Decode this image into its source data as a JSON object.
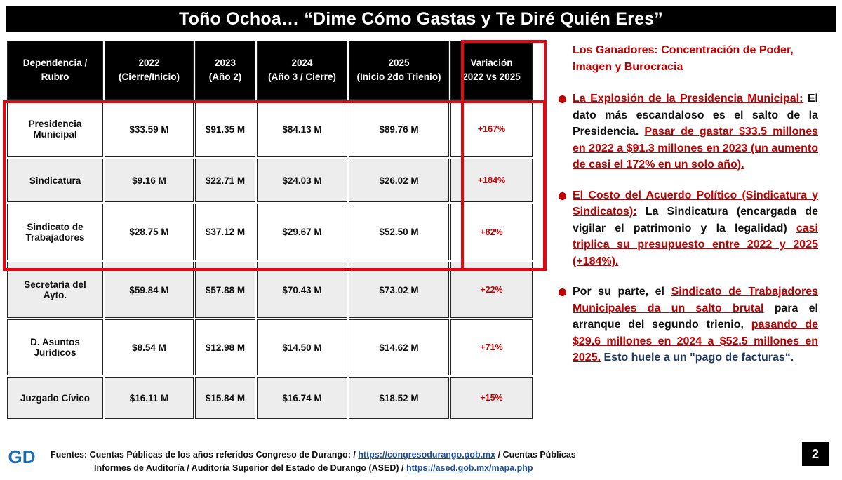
{
  "title": "Toño Ochoa… “Dime Cómo Gastas y Te Diré Quién Eres”",
  "table": {
    "headers": [
      [
        "Dependencia /",
        "Rubro"
      ],
      [
        "2022",
        "(Cierre/Inicio)"
      ],
      [
        "2023",
        "(Año 2)"
      ],
      [
        "2024",
        "(Año 3 / Cierre)"
      ],
      [
        "2025",
        "(Inicio 2do Trienio)"
      ],
      [
        "Variación",
        "2022 vs 2025"
      ]
    ],
    "rows": [
      {
        "name": [
          "Presidencia",
          "Municipal"
        ],
        "y2022": "$33.59 M",
        "y2023": "$91.35 M",
        "y2024": "$84.13 M",
        "y2025": "$89.76 M",
        "variation": "+167%"
      },
      {
        "name": [
          "Sindicatura"
        ],
        "y2022": "$9.16 M",
        "y2023": "$22.71 M",
        "y2024": "$24.03 M",
        "y2025": "$26.02 M",
        "variation": "+184%"
      },
      {
        "name": [
          "Sindicato de",
          "Trabajadores"
        ],
        "y2022": "$28.75 M",
        "y2023": "$37.12 M",
        "y2024": "$29.67 M",
        "y2025": "$52.50 M",
        "variation": "+82%"
      },
      {
        "name": [
          "Secretaría del",
          "Ayto."
        ],
        "y2022": "$59.84 M",
        "y2023": "$57.88 M",
        "y2024": "$70.43 M",
        "y2025": "$73.02 M",
        "variation": "+22%"
      },
      {
        "name": [
          "D. Asuntos",
          "Jurídicos"
        ],
        "y2022": "$8.54 M",
        "y2023": "$12.98 M",
        "y2024": "$14.50 M",
        "y2025": "$14.62 M",
        "variation": "+71%"
      },
      {
        "name": [
          "Juzgado Cívico"
        ],
        "y2022": "$16.11 M",
        "y2023": "$15.84 M",
        "y2024": "$16.74 M",
        "y2025": "$18.52 M",
        "variation": "+15%"
      }
    ]
  },
  "side": {
    "intro": "Los Ganadores: Concentración de Poder, Imagen y Burocracia",
    "b1_lead": "La Explosión de la Presidencia Municipal:",
    "b1_text": " El dato más escandaloso es el salto de la Presidencia. ",
    "b1_highlight": "Pasar de gastar $33.5 millones en 2022 a $91.3 millones en 2023 (un aumento de casi el 172% en un solo año).",
    "b2_lead": "El Costo del Acuerdo Político (Sindicatura y Sindicatos):",
    "b2_text": " La Sindicatura (encargada de vigilar el patrimonio y la legalidad) ",
    "b2_highlight": "casi triplica su presupuesto entre 2022 y 2025 (+184%).",
    "b3_text1": "Por su parte, el ",
    "b3_highlight1": "Sindicato de Trabajadores Municipales da un salto brutal",
    "b3_text2": " para el arranque del segundo trienio, ",
    "b3_highlight2": "pasando de $29.6 millones en 2024 a $52.5 millones en 2025.",
    "b3_text3": " Esto huele a un \"pago de facturas“."
  },
  "footer": {
    "line1_text": "Fuentes: Cuentas Públicas de los años referidos Congreso de Durango: / ",
    "line1_link": "https://congresodurango.gob.mx",
    "line1_tail": " / Cuentas Públicas",
    "line2_text": "Informes de Auditoría / Auditoría Superior del Estado de Durango (ASED) / ",
    "line2_link": "https://ased.gob.mx/mapa.php"
  },
  "logo_text": "GD",
  "page_number": "2",
  "colors": {
    "accent_red": "#e30613",
    "text_red": "#c00000",
    "header_black": "#000000",
    "link_blue": "#1f4e9c",
    "logo_blue": "#1a6fb5"
  }
}
